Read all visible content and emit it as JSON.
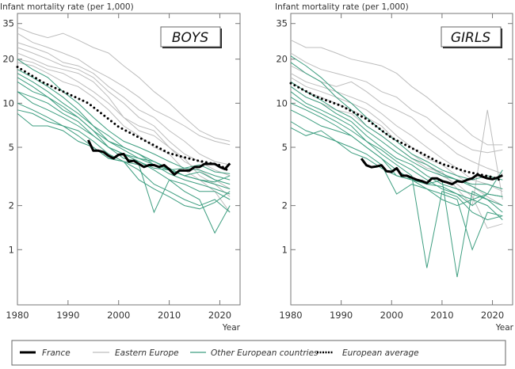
{
  "chart_data": [
    {
      "type": "line",
      "panel_label": "BOYS",
      "ylabel": "Infant mortality rate (per 1,000)",
      "xlabel": "Year",
      "yscale": "log",
      "ylim": [
        0.42,
        41
      ],
      "xlim": [
        1980,
        2024
      ],
      "yticks": [
        35,
        20,
        10,
        5,
        2,
        1
      ],
      "xticks": [
        1980,
        1990,
        2000,
        2010,
        2020
      ],
      "grid": false,
      "series": [
        {
          "name": "France",
          "x": [
            1994,
            1995,
            1996,
            1997,
            1998,
            1999,
            2000,
            2001,
            2002,
            2003,
            2004,
            2005,
            2006,
            2007,
            2008,
            2009,
            2010,
            2011,
            2012,
            2013,
            2014,
            2015,
            2016,
            2017,
            2018,
            2019,
            2020,
            2021,
            2022
          ],
          "values": [
            5.6,
            4.74,
            4.74,
            4.65,
            4.37,
            4.2,
            4.45,
            4.5,
            4.0,
            4.05,
            3.85,
            3.67,
            3.78,
            3.78,
            3.67,
            3.78,
            3.54,
            3.26,
            3.47,
            3.47,
            3.47,
            3.67,
            3.67,
            3.85,
            3.85,
            3.85,
            3.67,
            3.55,
            3.88
          ]
        },
        {
          "name": "European average",
          "x": [
            1980,
            1985,
            1990,
            1994,
            1995,
            2000,
            2005,
            2010,
            2015,
            2020,
            2022
          ],
          "values": [
            17.7,
            13.9,
            11.6,
            10,
            9.4,
            6.9,
            5.6,
            4.55,
            4.1,
            3.78,
            3.4
          ]
        }
      ],
      "eastern_europe": {
        "name": "Eastern Europe",
        "x": [
          1980,
          1983,
          1986,
          1989,
          1992,
          1995,
          1998,
          2001,
          2004,
          2007,
          2010,
          2013,
          2016,
          2019,
          2022
        ],
        "lines": [
          [
            33,
            30,
            28,
            30,
            27,
            24,
            22,
            18,
            15,
            12,
            10,
            8,
            6.5,
            5.8,
            5.5
          ],
          [
            30,
            26,
            24,
            22,
            20,
            17,
            15,
            13,
            11,
            9,
            8,
            7,
            6,
            5.5,
            5.2
          ],
          [
            26,
            24,
            22,
            19,
            18,
            16,
            13,
            11,
            9,
            8,
            6.5,
            5.5,
            4.5,
            4,
            3.8
          ],
          [
            24,
            22,
            20,
            18,
            17,
            15,
            12,
            10,
            8,
            7,
            5.5,
            4.5,
            4,
            3.5,
            3.2
          ],
          [
            22,
            20,
            18,
            17,
            16,
            14,
            11,
            8,
            7,
            6.5,
            5,
            4,
            3.5,
            3,
            2.6
          ],
          [
            20,
            19,
            17,
            16,
            14,
            12,
            10,
            8,
            6.5,
            6,
            5,
            4.2,
            3.2,
            2.8,
            2.3
          ],
          [
            19,
            18,
            16,
            14,
            13,
            11,
            9,
            7,
            6,
            5,
            4.5,
            3.5,
            3,
            2.5,
            1.8
          ]
        ]
      },
      "other_european_countries": {
        "name": "Other European countries",
        "x": [
          1980,
          1983,
          1986,
          1989,
          1992,
          1995,
          1998,
          2001,
          2004,
          2007,
          2010,
          2013,
          2016,
          2019,
          2022
        ],
        "lines": [
          [
            20,
            17,
            15,
            12,
            10,
            8,
            6.5,
            5.5,
            5,
            4.5,
            4,
            3.6,
            3.5,
            3.2,
            3
          ],
          [
            17,
            15,
            13,
            11,
            9,
            7,
            6,
            5,
            4.5,
            4,
            3.5,
            3.2,
            3,
            2.8,
            2.6
          ],
          [
            16,
            14,
            12,
            10,
            8.5,
            7,
            5.5,
            5,
            4.5,
            3.8,
            3.5,
            3.2,
            3.4,
            3,
            2.8
          ],
          [
            15,
            13,
            11,
            9.5,
            8,
            6.5,
            5.5,
            4.8,
            4.2,
            3.8,
            3.3,
            3,
            2.8,
            2.6,
            2.4
          ],
          [
            14,
            12,
            11,
            9,
            8,
            6.5,
            5,
            4.5,
            4,
            3.5,
            3,
            2.8,
            2.5,
            2.5,
            2.2
          ],
          [
            12,
            11,
            10,
            8.5,
            7.5,
            6,
            5,
            4.5,
            4.2,
            4,
            3.6,
            3.2,
            3,
            2.9,
            3.2
          ],
          [
            12,
            10,
            9,
            8,
            7,
            6,
            5,
            4.2,
            4,
            3.6,
            3.5,
            3.6,
            3.8,
            3.4,
            3.3
          ],
          [
            10,
            9,
            8,
            7,
            6.5,
            5.5,
            4.5,
            4,
            3.5,
            2.8,
            2.5,
            2.2,
            2,
            2.2,
            1.8
          ],
          [
            9,
            8.5,
            7.5,
            7,
            6,
            5,
            4.2,
            4,
            3,
            2.6,
            2.3,
            2,
            1.9,
            2.1,
            2.5
          ],
          [
            8.5,
            7,
            7,
            6.5,
            5.5,
            5,
            4.2,
            4,
            3.8,
            1.8,
            3,
            2.5,
            2.2,
            1.3,
            2
          ]
        ]
      }
    },
    {
      "type": "line",
      "panel_label": "GIRLS",
      "ylabel": "Infant mortality rate (per 1,000)",
      "xlabel": "Year",
      "yscale": "log",
      "ylim": [
        0.42,
        41
      ],
      "xlim": [
        1980,
        2024
      ],
      "yticks": [
        35,
        20,
        10,
        5,
        2,
        1
      ],
      "xticks": [
        1980,
        1990,
        2000,
        2010,
        2020
      ],
      "grid": false,
      "series": [
        {
          "name": "France",
          "x": [
            1994,
            1995,
            1996,
            1997,
            1998,
            1999,
            2000,
            2001,
            2002,
            2003,
            2004,
            2005,
            2006,
            2007,
            2008,
            2009,
            2010,
            2011,
            2012,
            2013,
            2014,
            2015,
            2016,
            2017,
            2018,
            2019,
            2020,
            2021,
            2022
          ],
          "values": [
            4.19,
            3.77,
            3.66,
            3.7,
            3.77,
            3.43,
            3.4,
            3.6,
            3.2,
            3.2,
            3.1,
            3.0,
            2.94,
            2.85,
            3.07,
            3.07,
            2.94,
            2.88,
            2.8,
            2.94,
            2.9,
            3.0,
            3.07,
            3.26,
            3.15,
            3.07,
            3.03,
            3.1,
            3.22
          ]
        },
        {
          "name": "European average",
          "x": [
            1980,
            1985,
            1990,
            1995,
            2000,
            2005,
            2010,
            2015,
            2020,
            2022
          ],
          "values": [
            13.7,
            11.1,
            9.6,
            7.8,
            5.8,
            4.74,
            3.85,
            3.4,
            3.13,
            2.94
          ]
        }
      ],
      "eastern_europe": {
        "name": "Eastern Europe",
        "x": [
          1980,
          1983,
          1986,
          1989,
          1992,
          1995,
          1998,
          2001,
          2004,
          2007,
          2010,
          2013,
          2016,
          2019,
          2022
        ],
        "lines": [
          [
            27,
            24,
            24,
            22,
            20,
            19,
            18,
            16,
            13,
            11,
            9,
            7.5,
            6,
            5.2,
            5.2
          ],
          [
            22,
            19,
            17,
            16,
            15,
            14,
            12,
            11,
            9,
            8,
            6.5,
            5.5,
            4.8,
            4.6,
            4.8
          ],
          [
            18,
            16,
            14,
            13,
            14,
            12,
            10,
            9,
            8,
            6.5,
            5.5,
            4.5,
            4,
            3.6,
            3.3
          ],
          [
            16,
            14,
            13,
            12,
            11,
            10,
            8.5,
            7,
            6,
            5,
            4.2,
            3.6,
            3,
            2.8,
            2.5
          ],
          [
            15,
            13,
            12,
            11,
            10,
            9,
            7.5,
            6,
            5,
            4.2,
            3.8,
            3.2,
            2.7,
            2.3,
            2
          ],
          [
            14,
            12,
            11,
            10,
            9,
            8,
            7,
            5.5,
            4.5,
            3.8,
            3.2,
            2.8,
            2.3,
            1.4,
            1.5
          ],
          [
            13,
            11,
            10,
            9,
            8.5,
            7,
            6,
            5,
            4.2,
            3.6,
            3.4,
            2.6,
            2.0,
            9,
            2.2
          ]
        ]
      },
      "other_european_countries": {
        "name": "Other European countries",
        "x": [
          1980,
          1983,
          1986,
          1989,
          1992,
          1995,
          1998,
          2001,
          2004,
          2007,
          2010,
          2013,
          2016,
          2019,
          2022
        ],
        "lines": [
          [
            21,
            18,
            15,
            12,
            10,
            8,
            6.5,
            5.5,
            4.5,
            4,
            3.5,
            3.2,
            3,
            3.2,
            3
          ],
          [
            19,
            16,
            14,
            11,
            9,
            7,
            6,
            5,
            4.2,
            3.8,
            3.3,
            3,
            2.8,
            2.8,
            2.6
          ],
          [
            14,
            12,
            10.5,
            9,
            8,
            6.5,
            5.5,
            4.6,
            4,
            3.5,
            3.2,
            3,
            2.7,
            2.4,
            2.3
          ],
          [
            13,
            11,
            10,
            8.5,
            7.5,
            6,
            5,
            4.2,
            3.8,
            3.2,
            2.8,
            2.6,
            2.4,
            2.2,
            1.8
          ],
          [
            12,
            10,
            9,
            8,
            7,
            5.5,
            4.8,
            4,
            3.5,
            3,
            2.6,
            2.4,
            2.2,
            2,
            1.6
          ],
          [
            11,
            9.5,
            8.5,
            7.5,
            6.5,
            5.5,
            4.5,
            3.8,
            3.2,
            0.75,
            2.5,
            2.3,
            1.8,
            1.6,
            1.7
          ],
          [
            10,
            9,
            8,
            7,
            6,
            5,
            4.2,
            3.5,
            3,
            2.8,
            3,
            0.65,
            2.5,
            2.2,
            2
          ],
          [
            9,
            8,
            7,
            6.5,
            6,
            5,
            4.2,
            3.2,
            3,
            2.6,
            2.4,
            2.2,
            1,
            1.8,
            1.7
          ],
          [
            7.5,
            6.5,
            6,
            5.5,
            5,
            4.5,
            3.8,
            2.4,
            2.8,
            2.6,
            2.2,
            2,
            2.2,
            2.4,
            3.5
          ],
          [
            6.8,
            6,
            6.5,
            5.5,
            4.6,
            4.2,
            3.6,
            3.2,
            3,
            2.8,
            2.7,
            2.4,
            2,
            2.4,
            2.3
          ]
        ]
      }
    }
  ],
  "legend": {
    "position": "bottom",
    "items": [
      {
        "label": "France",
        "style": "thick-solid"
      },
      {
        "label": "Eastern Europe",
        "style": "thin-solid"
      },
      {
        "label": "Other European countries",
        "style": "thin-solid"
      },
      {
        "label": "European average",
        "style": "dotted"
      }
    ]
  },
  "colors": {
    "france": "#000000",
    "eastern_europe": "#bdbdbd",
    "other_european_countries": "#3e9e80",
    "european_average": "#000000",
    "axis": "#777777"
  }
}
